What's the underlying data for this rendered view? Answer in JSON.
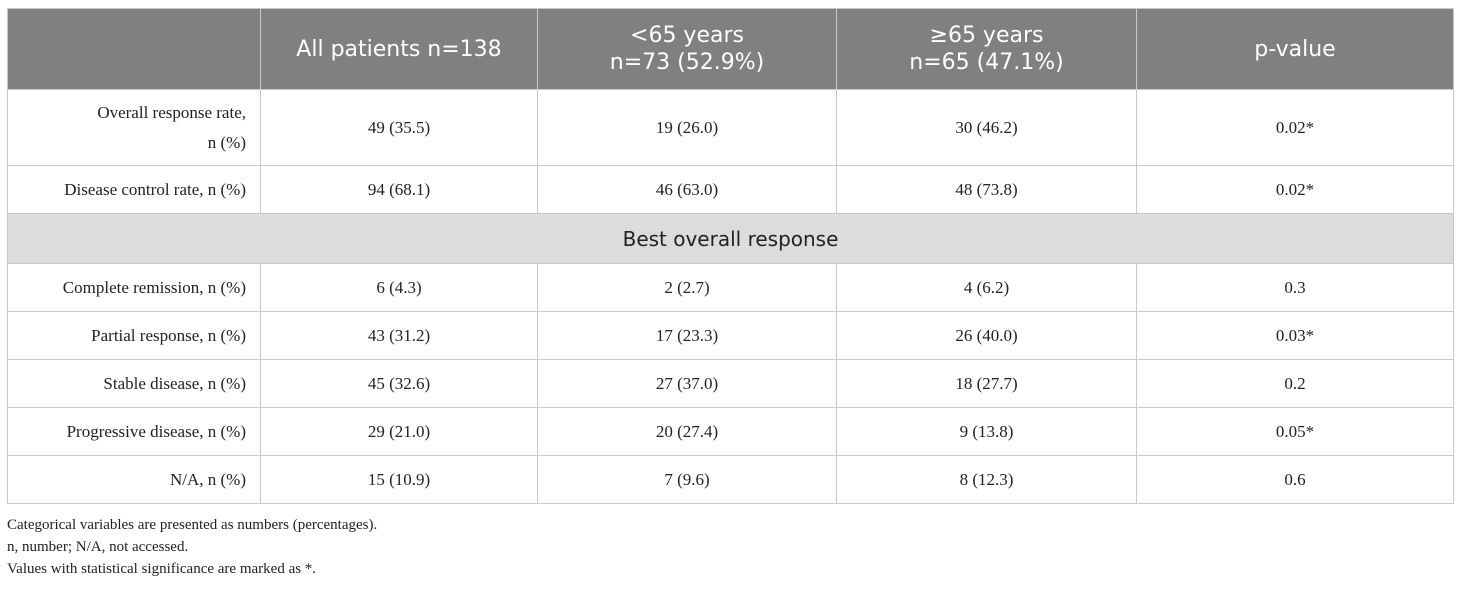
{
  "header": {
    "col0": "",
    "col1": "All patients n=138",
    "col2_line1": "<65 years",
    "col2_line2": "n=73 (52.9%)",
    "col3_line1": "≥65 years",
    "col3_line2": "n=65 (47.1%)",
    "col4": "p-value"
  },
  "rows_top": [
    {
      "label_line1": "Overall response rate,",
      "label_line2": "n (%)",
      "all": "49 (35.5)",
      "under65": "19 (26.0)",
      "over65": "30 (46.2)",
      "p": "0.02*"
    },
    {
      "label": "Disease control rate, n (%)",
      "all": "94 (68.1)",
      "under65": "46 (63.0)",
      "over65": "48 (73.8)",
      "p": "0.02*"
    }
  ],
  "section_title": "Best overall response",
  "rows_bottom": [
    {
      "label": "Complete remission, n (%)",
      "all": "6 (4.3)",
      "under65": "2 (2.7)",
      "over65": "4 (6.2)",
      "p": "0.3"
    },
    {
      "label": "Partial response, n (%)",
      "all": "43 (31.2)",
      "under65": "17 (23.3)",
      "over65": "26 (40.0)",
      "p": "0.03*"
    },
    {
      "label": "Stable disease, n (%)",
      "all": "45 (32.6)",
      "under65": "27 (37.0)",
      "over65": "18 (27.7)",
      "p": "0.2"
    },
    {
      "label": "Progressive disease, n (%)",
      "all": "29 (21.0)",
      "under65": "20 (27.4)",
      "over65": "9 (13.8)",
      "p": "0.05*"
    },
    {
      "label": "N/A, n (%)",
      "all": "15 (10.9)",
      "under65": "7 (9.6)",
      "over65": "8 (12.3)",
      "p": "0.6"
    }
  ],
  "footnotes": [
    "Categorical variables are presented as numbers (percentages).",
    "n, number; N/A, not accessed.",
    "Values with statistical significance are marked as *."
  ],
  "colors": {
    "header_bg": "#808080",
    "header_text": "#ffffff",
    "section_bg": "#dcdcdc",
    "border": "#c9c9c9"
  }
}
